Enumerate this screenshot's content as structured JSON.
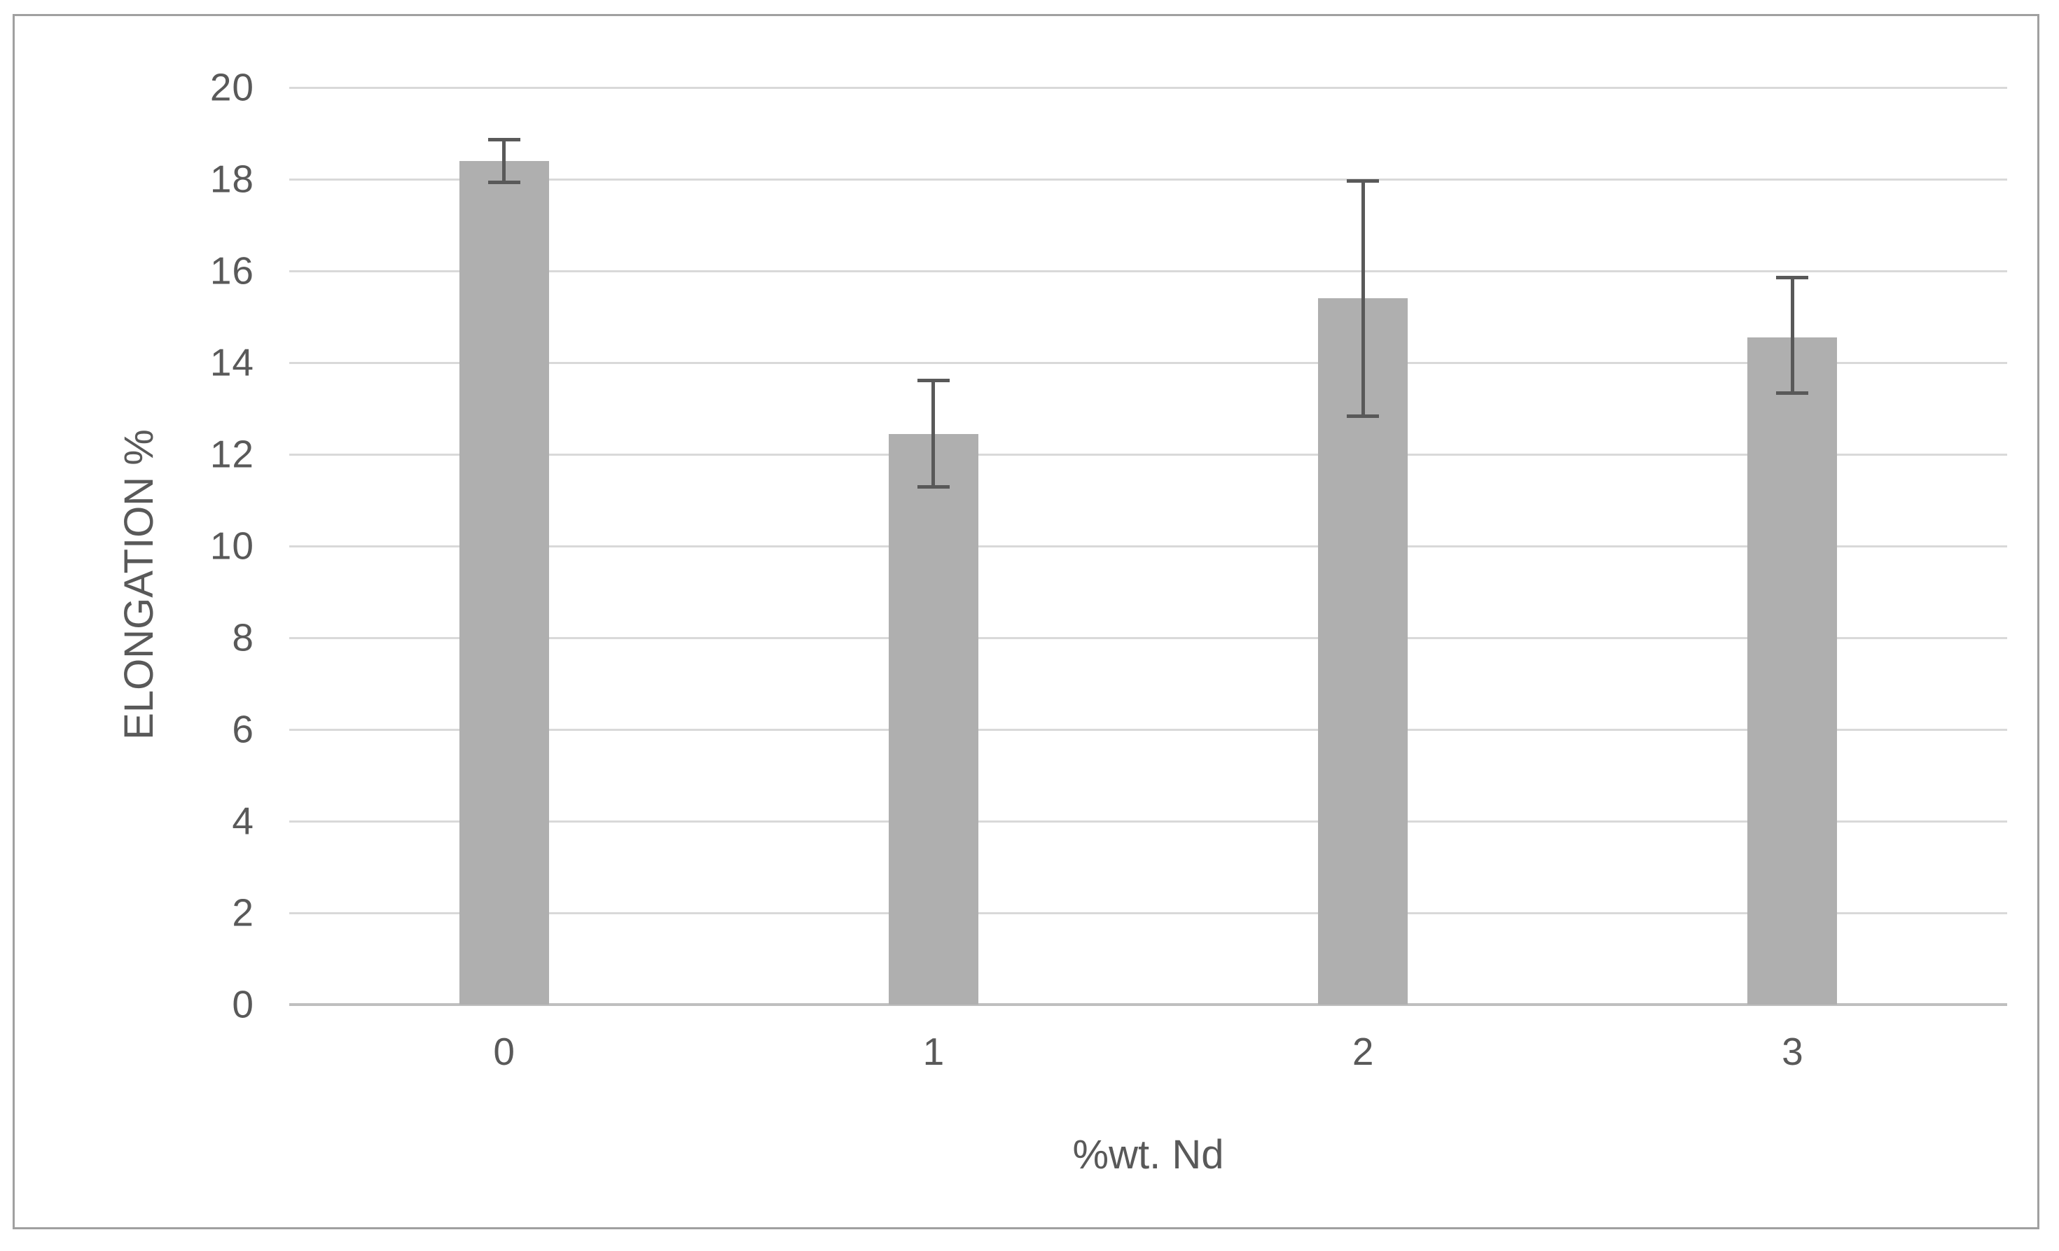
{
  "chart_data": {
    "type": "bar",
    "categories": [
      "0",
      "1",
      "2",
      "3"
    ],
    "values": [
      18.4,
      12.45,
      15.4,
      14.55
    ],
    "error_low": [
      17.9,
      11.25,
      12.8,
      13.3
    ],
    "error_high": [
      18.9,
      13.65,
      18.0,
      15.9
    ],
    "title": "",
    "xlabel": "%wt. Nd",
    "ylabel": "ELONGATION %",
    "ylim": [
      0,
      20
    ],
    "yticks": [
      20,
      18,
      16,
      14,
      12,
      10,
      8,
      6,
      4,
      2,
      0
    ],
    "grid": true,
    "legend": false,
    "colors": {
      "bar": "#AFAFAF",
      "error_bar": "#595959",
      "gridline": "#D9D9D9",
      "axis_line": "#BFBFBF",
      "text": "#595959",
      "frame_border": "#A0A0A0",
      "background": "#FFFFFF"
    }
  }
}
